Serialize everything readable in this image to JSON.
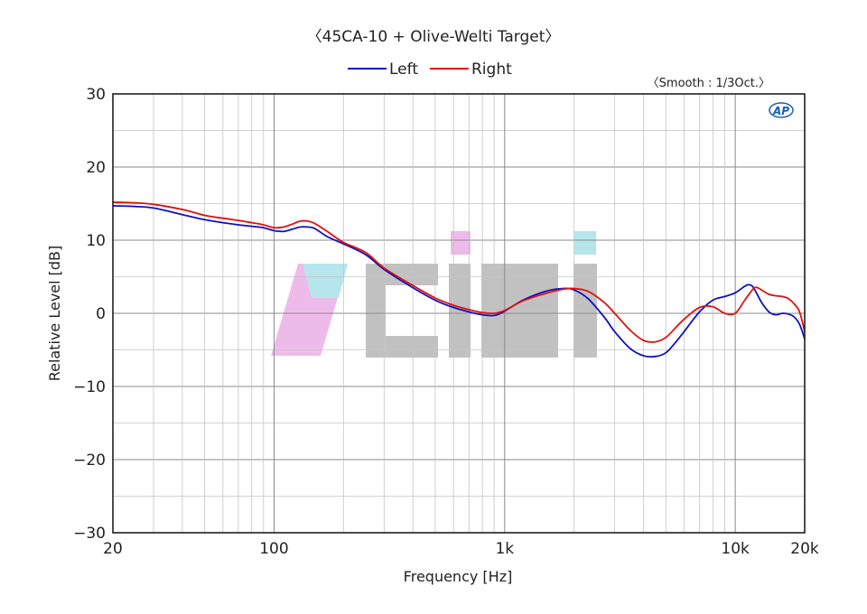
{
  "chart_data": {
    "type": "line",
    "title": "〈45CA-10 + Olive-Welti Target〉",
    "subtitle": "〈Smooth : 1/3Oct.〉",
    "xlabel": "Frequency [Hz]",
    "ylabel": "Relative Level [dB]",
    "x_scale": "log",
    "xlim": [
      20,
      20000
    ],
    "ylim": [
      -30,
      30
    ],
    "x_ticks": [
      {
        "value": 20,
        "label": "20"
      },
      {
        "value": 100,
        "label": "100"
      },
      {
        "value": 1000,
        "label": "1k"
      },
      {
        "value": 10000,
        "label": "10k"
      },
      {
        "value": 20000,
        "label": "20k"
      }
    ],
    "y_ticks": [
      {
        "value": 30,
        "label": "30"
      },
      {
        "value": 20,
        "label": "20"
      },
      {
        "value": 10,
        "label": "10"
      },
      {
        "value": 0,
        "label": "0"
      },
      {
        "value": -10,
        "label": "−10"
      },
      {
        "value": -20,
        "label": "−20"
      },
      {
        "value": -30,
        "label": "−30"
      }
    ],
    "grid": true,
    "legend": "top-center",
    "series": [
      {
        "name": "Left",
        "color": "#1010c0",
        "x": [
          20,
          25,
          30,
          40,
          50,
          60,
          70,
          80,
          90,
          100,
          110,
          120,
          130,
          140,
          150,
          170,
          200,
          250,
          300,
          400,
          500,
          600,
          700,
          800,
          900,
          1000,
          1200,
          1500,
          1800,
          2000,
          2300,
          2700,
          3000,
          3500,
          4000,
          4500,
          5000,
          5500,
          6000,
          7000,
          8000,
          9000,
          10000,
          11000,
          11500,
          12000,
          13000,
          14000,
          15000,
          16000,
          17000,
          18000,
          19000,
          20000
        ],
        "y": [
          14.7,
          14.6,
          14.4,
          13.5,
          12.8,
          12.4,
          12.1,
          11.9,
          11.7,
          11.3,
          11.2,
          11.5,
          11.8,
          11.8,
          11.6,
          10.5,
          9.5,
          8.0,
          6.0,
          3.5,
          1.8,
          0.8,
          0.2,
          -0.2,
          -0.3,
          0.3,
          1.8,
          3.0,
          3.4,
          3.2,
          2.0,
          -0.5,
          -2.5,
          -4.8,
          -5.8,
          -5.9,
          -5.4,
          -4.0,
          -2.5,
          0.2,
          1.8,
          2.3,
          2.8,
          3.7,
          3.9,
          3.5,
          1.5,
          0.2,
          -0.2,
          0.0,
          -0.1,
          -0.5,
          -1.5,
          -3.5
        ]
      },
      {
        "name": "Right",
        "color": "#e01010",
        "x": [
          20,
          25,
          30,
          40,
          50,
          60,
          70,
          80,
          90,
          100,
          110,
          120,
          130,
          140,
          150,
          170,
          200,
          250,
          300,
          400,
          500,
          600,
          700,
          800,
          900,
          1000,
          1200,
          1500,
          1800,
          2000,
          2300,
          2700,
          3000,
          3500,
          4000,
          4500,
          5000,
          5500,
          6000,
          7000,
          8000,
          9000,
          10000,
          11000,
          12000,
          12500,
          13000,
          14000,
          15000,
          16000,
          17000,
          18000,
          19000,
          20000
        ],
        "y": [
          15.2,
          15.1,
          14.9,
          14.2,
          13.4,
          13.0,
          12.7,
          12.4,
          12.1,
          11.7,
          11.8,
          12.2,
          12.6,
          12.6,
          12.3,
          11.2,
          9.7,
          8.3,
          6.2,
          3.8,
          2.1,
          1.1,
          0.5,
          0.1,
          0.0,
          0.4,
          1.7,
          2.7,
          3.3,
          3.4,
          3.0,
          1.5,
          0.0,
          -2.3,
          -3.7,
          -3.9,
          -3.3,
          -2.0,
          -0.8,
          0.8,
          0.9,
          0.0,
          0.0,
          1.8,
          3.4,
          3.5,
          3.2,
          2.6,
          2.4,
          2.3,
          2.0,
          1.3,
          0.2,
          -2.5
        ]
      }
    ]
  },
  "badge_text": "AP",
  "watermark_text": "Ciji"
}
